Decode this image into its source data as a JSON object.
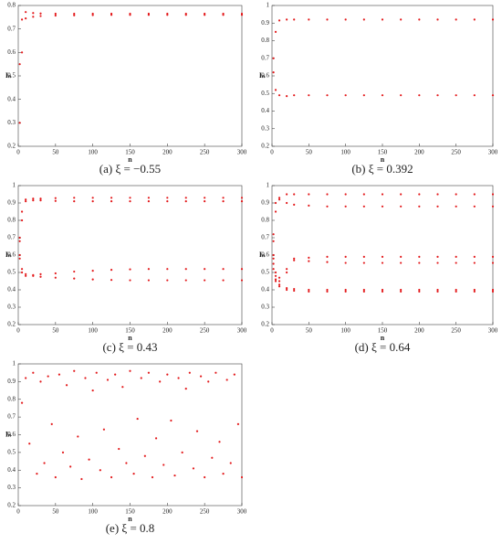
{
  "chart_data": [
    {
      "type": "scatter",
      "caption": "(a) ξ = −0.55",
      "x_label": "n",
      "y_label": "Iₙ",
      "color": "#e31a1c",
      "xlim": [
        0,
        300
      ],
      "xticks": [
        0,
        50,
        100,
        150,
        200,
        250,
        300
      ],
      "ylim": [
        0.2,
        0.8
      ],
      "yticks": [
        0.2,
        0.3,
        0.4,
        0.5,
        0.6,
        0.7,
        0.8
      ],
      "x": [
        2,
        5,
        10,
        20,
        30,
        50,
        75,
        100,
        125,
        150,
        175,
        200,
        225,
        250,
        275,
        300
      ],
      "series": [
        {
          "values": [
            0.55,
            0.74,
            0.772,
            0.768,
            0.766,
            0.765,
            0.765,
            0.765,
            0.765,
            0.765,
            0.765,
            0.765,
            0.765,
            0.765,
            0.765,
            0.765
          ]
        },
        {
          "values": [
            0.3,
            0.6,
            0.745,
            0.752,
            0.755,
            0.757,
            0.758,
            0.759,
            0.76,
            0.76,
            0.76,
            0.76,
            0.76,
            0.76,
            0.76,
            0.76
          ]
        }
      ]
    },
    {
      "type": "scatter",
      "caption": "(b) ξ = 0.392",
      "x_label": "n",
      "y_label": "Iₙ",
      "color": "#e31a1c",
      "xlim": [
        0,
        300
      ],
      "xticks": [
        0,
        50,
        100,
        150,
        200,
        250,
        300
      ],
      "ylim": [
        0.2,
        1
      ],
      "yticks": [
        0.2,
        0.3,
        0.4,
        0.5,
        0.6,
        0.7,
        0.8,
        0.9,
        1
      ],
      "x": [
        2,
        5,
        10,
        20,
        30,
        50,
        75,
        100,
        125,
        150,
        175,
        200,
        225,
        250,
        275,
        300
      ],
      "series": [
        {
          "values": [
            0.7,
            0.85,
            0.915,
            0.92,
            0.92,
            0.92,
            0.92,
            0.92,
            0.92,
            0.92,
            0.92,
            0.92,
            0.92,
            0.92,
            0.92,
            0.92
          ]
        },
        {
          "values": [
            0.62,
            0.52,
            0.49,
            0.485,
            0.49,
            0.49,
            0.49,
            0.49,
            0.49,
            0.49,
            0.49,
            0.49,
            0.49,
            0.49,
            0.49,
            0.49
          ]
        }
      ]
    },
    {
      "type": "scatter",
      "caption": "(c) ξ = 0.43",
      "x_label": "n",
      "y_label": "Iₙ",
      "color": "#e31a1c",
      "xlim": [
        0,
        300
      ],
      "xticks": [
        0,
        50,
        100,
        150,
        200,
        250,
        300
      ],
      "ylim": [
        0.2,
        1
      ],
      "yticks": [
        0.2,
        0.3,
        0.4,
        0.5,
        0.6,
        0.7,
        0.8,
        0.9,
        1
      ],
      "x": [
        2,
        5,
        10,
        20,
        30,
        50,
        75,
        100,
        125,
        150,
        175,
        200,
        225,
        250,
        275,
        300
      ],
      "series": [
        {
          "values": [
            0.7,
            0.85,
            0.92,
            0.925,
            0.925,
            0.928,
            0.93,
            0.93,
            0.93,
            0.93,
            0.93,
            0.93,
            0.93,
            0.93,
            0.93,
            0.93
          ]
        },
        {
          "values": [
            0.68,
            0.8,
            0.91,
            0.915,
            0.915,
            0.912,
            0.91,
            0.91,
            0.91,
            0.91,
            0.91,
            0.91,
            0.91,
            0.91,
            0.91,
            0.91
          ]
        },
        {
          "values": [
            0.6,
            0.52,
            0.49,
            0.485,
            0.49,
            0.495,
            0.505,
            0.51,
            0.515,
            0.518,
            0.52,
            0.52,
            0.52,
            0.52,
            0.52,
            0.52
          ]
        },
        {
          "values": [
            0.58,
            0.5,
            0.48,
            0.48,
            0.475,
            0.47,
            0.465,
            0.46,
            0.457,
            0.455,
            0.455,
            0.455,
            0.455,
            0.455,
            0.455,
            0.455
          ]
        }
      ]
    },
    {
      "type": "scatter",
      "caption": "(d) ξ = 0.64",
      "x_label": "n",
      "y_label": "Iₙ",
      "color": "#e31a1c",
      "xlim": [
        0,
        300
      ],
      "xticks": [
        0,
        50,
        100,
        150,
        200,
        250,
        300
      ],
      "ylim": [
        0.2,
        1
      ],
      "yticks": [
        0.2,
        0.3,
        0.4,
        0.5,
        0.6,
        0.7,
        0.8,
        0.9,
        1
      ],
      "x": [
        2,
        5,
        10,
        20,
        30,
        50,
        75,
        100,
        125,
        150,
        175,
        200,
        225,
        250,
        275,
        300
      ],
      "series": [
        {
          "values": [
            0.72,
            0.9,
            0.93,
            0.95,
            0.95,
            0.95,
            0.95,
            0.95,
            0.95,
            0.95,
            0.95,
            0.95,
            0.95,
            0.95,
            0.95,
            0.95
          ]
        },
        {
          "values": [
            0.68,
            0.85,
            0.92,
            0.9,
            0.89,
            0.885,
            0.88,
            0.88,
            0.88,
            0.88,
            0.88,
            0.88,
            0.88,
            0.88,
            0.88,
            0.88
          ]
        },
        {
          "values": [
            0.6,
            0.5,
            0.45,
            0.52,
            0.58,
            0.585,
            0.59,
            0.59,
            0.59,
            0.59,
            0.59,
            0.59,
            0.59,
            0.59,
            0.59,
            0.59
          ]
        },
        {
          "values": [
            0.58,
            0.48,
            0.47,
            0.5,
            0.57,
            0.565,
            0.56,
            0.555,
            0.555,
            0.555,
            0.555,
            0.555,
            0.555,
            0.555,
            0.555,
            0.555
          ]
        },
        {
          "values": [
            0.55,
            0.46,
            0.43,
            0.41,
            0.405,
            0.4,
            0.4,
            0.4,
            0.4,
            0.4,
            0.4,
            0.4,
            0.4,
            0.4,
            0.4,
            0.4
          ]
        },
        {
          "values": [
            0.52,
            0.45,
            0.42,
            0.4,
            0.395,
            0.39,
            0.39,
            0.39,
            0.39,
            0.39,
            0.39,
            0.39,
            0.39,
            0.39,
            0.39,
            0.39
          ]
        }
      ]
    },
    {
      "type": "scatter",
      "caption": "(e) ξ = 0.8",
      "x_label": "n",
      "y_label": "Iₙ",
      "color": "#e31a1c",
      "xlim": [
        0,
        300
      ],
      "xticks": [
        0,
        50,
        100,
        150,
        200,
        250,
        300
      ],
      "ylim": [
        0.2,
        1
      ],
      "yticks": [
        0.2,
        0.3,
        0.4,
        0.5,
        0.6,
        0.7,
        0.8,
        0.9,
        1
      ],
      "x": [
        5,
        10,
        15,
        20,
        25,
        30,
        35,
        40,
        45,
        50,
        55,
        60,
        65,
        70,
        75,
        80,
        85,
        90,
        95,
        100,
        105,
        110,
        115,
        120,
        125,
        130,
        135,
        140,
        145,
        150,
        155,
        160,
        165,
        170,
        175,
        180,
        185,
        190,
        195,
        200,
        205,
        210,
        215,
        220,
        225,
        230,
        235,
        240,
        245,
        250,
        255,
        260,
        265,
        270,
        275,
        280,
        285,
        290,
        295,
        300
      ],
      "series": [
        {
          "values": [
            0.78,
            0.92,
            0.55,
            0.95,
            0.38,
            0.9,
            0.44,
            0.93,
            0.66,
            0.36,
            0.94,
            0.5,
            0.88,
            0.42,
            0.96,
            0.59,
            0.35,
            0.92,
            0.46,
            0.85,
            0.95,
            0.4,
            0.63,
            0.91,
            0.36,
            0.94,
            0.52,
            0.87,
            0.44,
            0.96,
            0.38,
            0.69,
            0.92,
            0.48,
            0.95,
            0.36,
            0.58,
            0.9,
            0.43,
            0.94,
            0.68,
            0.37,
            0.92,
            0.5,
            0.86,
            0.95,
            0.41,
            0.62,
            0.93,
            0.36,
            0.9,
            0.47,
            0.95,
            0.56,
            0.38,
            0.91,
            0.44,
            0.94,
            0.66,
            0.36
          ]
        }
      ]
    }
  ]
}
